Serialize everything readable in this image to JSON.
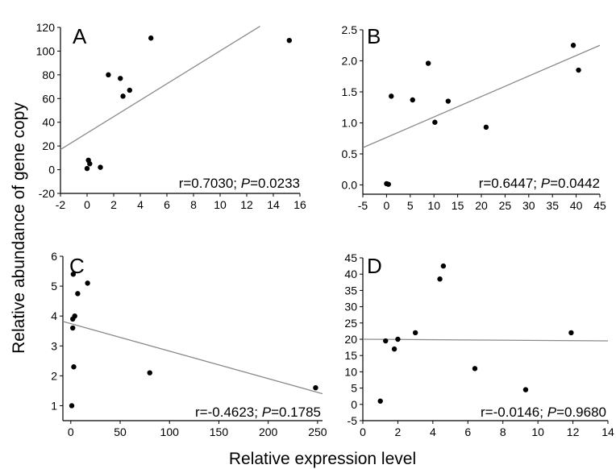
{
  "figure": {
    "ylabel": "Relative abundance of gene copy",
    "xlabel": "Relative expression level"
  },
  "chart_data": [
    {
      "type": "scatter",
      "panel": "A",
      "r_text": "r=0.7030; ",
      "p_label": "P",
      "p_text": "=0.0233",
      "xlim": [
        -2,
        16
      ],
      "ylim": [
        -20,
        120
      ],
      "xticks": [
        -2,
        0,
        2,
        4,
        6,
        8,
        10,
        12,
        14,
        16
      ],
      "yticks": [
        -20,
        0,
        20,
        40,
        60,
        80,
        100,
        120
      ],
      "points": [
        [
          0,
          1
        ],
        [
          0.1,
          8
        ],
        [
          0.2,
          5
        ],
        [
          1,
          2
        ],
        [
          1.6,
          80
        ],
        [
          2.5,
          77
        ],
        [
          2.7,
          62
        ],
        [
          3.2,
          67
        ],
        [
          4.8,
          111
        ],
        [
          15.2,
          109
        ]
      ],
      "fit_line": [
        [
          -2,
          17
        ],
        [
          13,
          121
        ]
      ]
    },
    {
      "type": "scatter",
      "panel": "B",
      "r_text": "r=0.6447; ",
      "p_label": "P",
      "p_text": "=0.0442",
      "xlim": [
        -5,
        45
      ],
      "ylim": [
        -0.15,
        2.5
      ],
      "xticks": [
        -5,
        0,
        5,
        10,
        15,
        20,
        25,
        30,
        35,
        40,
        45
      ],
      "yticks": [
        0.0,
        0.5,
        1.0,
        1.5,
        2.0,
        2.5
      ],
      "ytick_labels": [
        "0.0",
        "0.5",
        "1.0",
        "1.5",
        "2.0",
        "2.5"
      ],
      "points": [
        [
          0,
          0.02
        ],
        [
          0.4,
          0.01
        ],
        [
          1,
          1.43
        ],
        [
          5.5,
          1.37
        ],
        [
          8.8,
          1.96
        ],
        [
          10.2,
          1.01
        ],
        [
          13,
          1.35
        ],
        [
          21,
          0.93
        ],
        [
          39.4,
          2.25
        ],
        [
          40.5,
          1.85
        ]
      ],
      "fit_line": [
        [
          -5,
          0.6
        ],
        [
          45,
          2.25
        ]
      ]
    },
    {
      "type": "scatter",
      "panel": "C",
      "r_text": "r=-0.4623; ",
      "p_label": "P",
      "p_text": "=0.1785",
      "xlim": [
        -8,
        255
      ],
      "ylim": [
        0.5,
        6
      ],
      "xticks": [
        0,
        50,
        100,
        150,
        200,
        250
      ],
      "yticks": [
        1,
        2,
        3,
        4,
        5,
        6
      ],
      "points": [
        [
          1,
          1
        ],
        [
          2,
          3.9
        ],
        [
          2,
          3.6
        ],
        [
          2.5,
          5.4
        ],
        [
          3,
          2.3
        ],
        [
          4,
          4
        ],
        [
          7,
          4.75
        ],
        [
          17,
          5.1
        ],
        [
          80,
          2.1
        ],
        [
          248,
          1.6
        ]
      ],
      "fit_line": [
        [
          -8,
          3.82
        ],
        [
          255,
          1.4
        ]
      ]
    },
    {
      "type": "scatter",
      "panel": "D",
      "r_text": "r=-0.0146; ",
      "p_label": "P",
      "p_text": "=0.9680",
      "xlim": [
        0,
        14
      ],
      "ylim": [
        -5,
        45
      ],
      "xticks": [
        0,
        2,
        4,
        6,
        8,
        10,
        12,
        14
      ],
      "yticks": [
        -5,
        0,
        5,
        10,
        15,
        20,
        25,
        30,
        35,
        40,
        45
      ],
      "points": [
        [
          1,
          1
        ],
        [
          1.3,
          19.5
        ],
        [
          1.8,
          17
        ],
        [
          2,
          20
        ],
        [
          3,
          22
        ],
        [
          4.4,
          38.5
        ],
        [
          4.6,
          42.5
        ],
        [
          6.4,
          11
        ],
        [
          9.3,
          4.5
        ],
        [
          11.9,
          22
        ]
      ],
      "fit_line": [
        [
          0,
          20
        ],
        [
          14,
          19.5
        ]
      ]
    }
  ]
}
